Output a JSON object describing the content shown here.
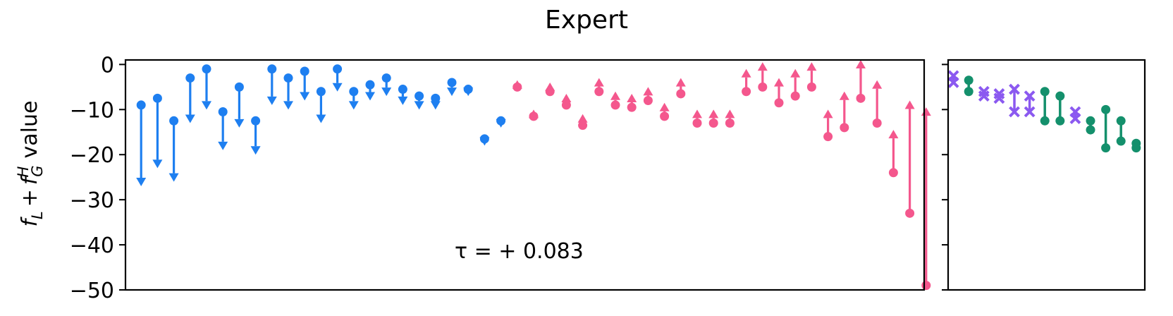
{
  "figure": {
    "title": "Expert",
    "ylabel_parts": {
      "f": "f",
      "L": "L",
      "plus": "+",
      "H": "H",
      "G": "G",
      "value": "value"
    },
    "annotation": "τ = + 0.083"
  },
  "colors": {
    "down": "#1e7ff0",
    "up": "#f4578d",
    "cross": "#8b59f0",
    "pair": "#14906c",
    "axis": "#000000"
  },
  "chart_data": [
    {
      "type": "arrow-dot",
      "ylim": [
        -50,
        1
      ],
      "y_ticks": [
        0,
        -10,
        -20,
        -30,
        -40,
        -50
      ],
      "y_tick_labels": [
        "0",
        "−10",
        "−20",
        "−30",
        "−40",
        "−50"
      ],
      "x_ticks": "none",
      "series": [
        {
          "direction": "down",
          "points": [
            {
              "x": 1,
              "from": -9,
              "to": -27
            },
            {
              "x": 2,
              "from": -7.5,
              "to": -23
            },
            {
              "x": 3,
              "from": -12.5,
              "to": -26
            },
            {
              "x": 4,
              "from": -3,
              "to": -13
            },
            {
              "x": 5,
              "from": -1,
              "to": -10
            },
            {
              "x": 6,
              "from": -10.5,
              "to": -19
            },
            {
              "x": 7,
              "from": -5,
              "to": -14
            },
            {
              "x": 8,
              "from": -12.5,
              "to": -20
            },
            {
              "x": 9,
              "from": -1,
              "to": -9
            },
            {
              "x": 10,
              "from": -3,
              "to": -10
            },
            {
              "x": 11,
              "from": -1.5,
              "to": -8
            },
            {
              "x": 12,
              "from": -6,
              "to": -13
            },
            {
              "x": 13,
              "from": -1,
              "to": -6
            },
            {
              "x": 14,
              "from": -6,
              "to": -10
            },
            {
              "x": 15,
              "from": -4.5,
              "to": -8
            },
            {
              "x": 16,
              "from": -3,
              "to": -7
            },
            {
              "x": 17,
              "from": -5.5,
              "to": -9
            },
            {
              "x": 18,
              "from": -7,
              "to": -10
            },
            {
              "x": 19,
              "from": -7.5,
              "to": -10
            },
            {
              "x": 20,
              "from": -4,
              "to": -7
            },
            {
              "x": 21,
              "from": -5.5,
              "to": -7
            },
            {
              "x": 22,
              "from": -16.5,
              "to": -18
            },
            {
              "x": 23,
              "from": -12.5,
              "to": -14
            }
          ]
        },
        {
          "direction": "up",
          "points": [
            {
              "x": 24,
              "from": -5,
              "to": -3.5
            },
            {
              "x": 25,
              "from": -11.5,
              "to": -10
            },
            {
              "x": 26,
              "from": -6,
              "to": -4
            },
            {
              "x": 27,
              "from": -9,
              "to": -6.5
            },
            {
              "x": 28,
              "from": -13.5,
              "to": -11
            },
            {
              "x": 29,
              "from": -6,
              "to": -3
            },
            {
              "x": 30,
              "from": -9,
              "to": -6
            },
            {
              "x": 31,
              "from": -9.5,
              "to": -6.5
            },
            {
              "x": 32,
              "from": -8,
              "to": -5
            },
            {
              "x": 33,
              "from": -11.5,
              "to": -8.5
            },
            {
              "x": 34,
              "from": -6.5,
              "to": -3
            },
            {
              "x": 35,
              "from": -13,
              "to": -10
            },
            {
              "x": 36,
              "from": -13,
              "to": -10
            },
            {
              "x": 37,
              "from": -13,
              "to": -10
            },
            {
              "x": 38,
              "from": -6,
              "to": -1
            },
            {
              "x": 39,
              "from": -5,
              "to": 0.5
            },
            {
              "x": 40,
              "from": -8.5,
              "to": -3
            },
            {
              "x": 41,
              "from": -7,
              "to": -1
            },
            {
              "x": 42,
              "from": -5,
              "to": 0.5
            },
            {
              "x": 43,
              "from": -16,
              "to": -10
            },
            {
              "x": 44,
              "from": -14,
              "to": -6
            },
            {
              "x": 45,
              "from": -7.5,
              "to": 1
            },
            {
              "x": 46,
              "from": -13,
              "to": -3.5
            },
            {
              "x": 47,
              "from": -24,
              "to": -14.5
            },
            {
              "x": 48,
              "from": -33,
              "to": -8
            },
            {
              "x": 49,
              "from": -49,
              "to": -9.5
            }
          ]
        }
      ]
    },
    {
      "type": "paired-markers",
      "ylim": [
        -50,
        1
      ],
      "y_tick_labels": "none",
      "x_ticks": "none",
      "series": [
        {
          "marker": "cross",
          "points": [
            {
              "x": 1,
              "a": -2.5,
              "b": -4
            },
            {
              "x": 3,
              "a": -6,
              "b": -7
            },
            {
              "x": 4,
              "a": -6.5,
              "b": -7.5
            },
            {
              "x": 5,
              "a": -5.5,
              "b": -10.5
            },
            {
              "x": 6,
              "a": -7,
              "b": -10.5
            },
            {
              "x": 9,
              "a": -10.5,
              "b": -12
            }
          ]
        },
        {
          "marker": "dot",
          "points": [
            {
              "x": 2,
              "a": -3.5,
              "b": -6
            },
            {
              "x": 7,
              "a": -6,
              "b": -12.5
            },
            {
              "x": 8,
              "a": -7,
              "b": -12.5
            },
            {
              "x": 10,
              "a": -12.5,
              "b": -14.5
            },
            {
              "x": 11,
              "a": -10,
              "b": -18.5
            },
            {
              "x": 12,
              "a": -12.5,
              "b": -17
            },
            {
              "x": 13,
              "a": -17.5,
              "b": -18.5
            }
          ]
        }
      ]
    }
  ]
}
